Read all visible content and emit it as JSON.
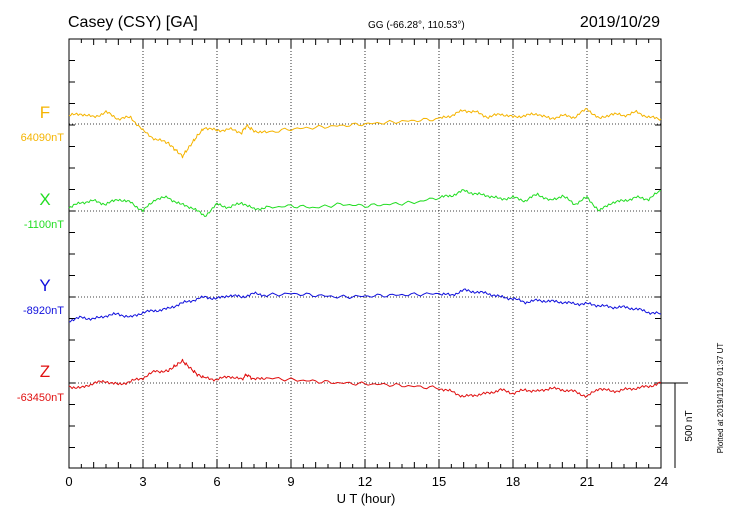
{
  "chart_data": {
    "type": "line",
    "title": "Casey (CSY)  [GA]",
    "subtitle": "GG (-66.28°, 110.53°)",
    "date": "2019/10/29",
    "xlabel": "U T (hour)",
    "xlim": [
      0,
      24
    ],
    "x_ticks": [
      "0",
      "3",
      "6",
      "9",
      "12",
      "15",
      "18",
      "21",
      "24"
    ],
    "grid": true,
    "scale_bar": {
      "label": "500 nT",
      "value": 500
    },
    "footer_note": "Plotted at 2019/11/29 01:37 UT",
    "series": [
      {
        "name": "F",
        "baseline_label": "64090nT",
        "baseline": 64090,
        "color": "#f5b400",
        "x": [
          0,
          0.5,
          1,
          1.5,
          2,
          2.5,
          3,
          3.5,
          4,
          4.3,
          4.6,
          4.9,
          5.2,
          5.5,
          6,
          6.5,
          7,
          7.2,
          7.5,
          8,
          9,
          10,
          11,
          12,
          13,
          14,
          15,
          15.5,
          16,
          16.5,
          17,
          17.5,
          18,
          18.5,
          19,
          19.5,
          20,
          20.5,
          21,
          21.5,
          22,
          22.5,
          23,
          23.5,
          24
        ],
        "values": [
          64140,
          64150,
          64130,
          64160,
          64120,
          64130,
          64050,
          64000,
          63980,
          63940,
          63900,
          63960,
          64020,
          64070,
          64050,
          64060,
          64040,
          64080,
          64050,
          64040,
          64060,
          64070,
          64080,
          64090,
          64100,
          64110,
          64120,
          64140,
          64170,
          64160,
          64130,
          64150,
          64130,
          64140,
          64150,
          64120,
          64140,
          64130,
          64180,
          64120,
          64150,
          64140,
          64160,
          64130,
          64120
        ]
      },
      {
        "name": "X",
        "baseline_label": "-1100nT",
        "baseline": -1100,
        "color": "#22dd22",
        "x": [
          0,
          0.5,
          1,
          1.5,
          2,
          2.5,
          3,
          3.5,
          4,
          4.5,
          5,
          5.5,
          6,
          6.5,
          7,
          7.5,
          8,
          9,
          10,
          11,
          12,
          13,
          14,
          15,
          15.5,
          16,
          16.5,
          17,
          17.5,
          18,
          18.5,
          19,
          19.5,
          20,
          20.5,
          21,
          21.5,
          22,
          22.5,
          23,
          23.5,
          24
        ],
        "values": [
          -1080,
          -1050,
          -1040,
          -1060,
          -1030,
          -1050,
          -1100,
          -1030,
          -1020,
          -1060,
          -1080,
          -1130,
          -1060,
          -1080,
          -1050,
          -1090,
          -1080,
          -1070,
          -1080,
          -1060,
          -1070,
          -1060,
          -1050,
          -1020,
          -1010,
          -980,
          -1000,
          -1010,
          -1030,
          -1020,
          -1040,
          -1000,
          -1040,
          -1010,
          -1060,
          -1020,
          -1100,
          -1050,
          -1040,
          -1020,
          -1030,
          -980
        ]
      },
      {
        "name": "Y",
        "baseline_label": "-8920nT",
        "baseline": -8920,
        "color": "#1010dd",
        "x": [
          0,
          0.5,
          1,
          1.5,
          2,
          2.5,
          3,
          3.5,
          4,
          4.5,
          5,
          5.5,
          6,
          6.5,
          7,
          7.5,
          8,
          9,
          10,
          11,
          12,
          13,
          14,
          15,
          15.5,
          16,
          16.5,
          17,
          17.5,
          18,
          18.5,
          19,
          19.5,
          20,
          20.5,
          21,
          21.5,
          22,
          22.5,
          23,
          23.5,
          24
        ],
        "values": [
          -9060,
          -9040,
          -9050,
          -9030,
          -9020,
          -9040,
          -9010,
          -9000,
          -8990,
          -8960,
          -8940,
          -8920,
          -8930,
          -8910,
          -8920,
          -8900,
          -8910,
          -8900,
          -8910,
          -8920,
          -8915,
          -8910,
          -8905,
          -8900,
          -8910,
          -8880,
          -8890,
          -8900,
          -8920,
          -8930,
          -8950,
          -8940,
          -8945,
          -8950,
          -8960,
          -8960,
          -8970,
          -8980,
          -8980,
          -8990,
          -9010,
          -9020
        ]
      },
      {
        "name": "Z",
        "baseline_label": "-63450nT",
        "baseline": -63450,
        "color": "#e01010",
        "x": [
          0,
          0.5,
          1,
          1.5,
          2,
          2.5,
          3,
          3.5,
          4,
          4.3,
          4.6,
          4.9,
          5.2,
          5.5,
          6,
          6.5,
          7,
          7.2,
          7.5,
          8,
          9,
          10,
          11,
          12,
          13,
          14,
          15,
          15.5,
          16,
          16.5,
          17,
          17.5,
          18,
          18.5,
          19,
          19.5,
          20,
          20.5,
          21,
          21.5,
          22,
          22.5,
          23,
          23.5,
          24
        ],
        "values": [
          -63470,
          -63480,
          -63450,
          -63440,
          -63460,
          -63440,
          -63420,
          -63380,
          -63380,
          -63350,
          -63320,
          -63360,
          -63400,
          -63420,
          -63430,
          -63410,
          -63430,
          -63400,
          -63430,
          -63420,
          -63430,
          -63440,
          -63450,
          -63455,
          -63460,
          -63470,
          -63480,
          -63500,
          -63530,
          -63520,
          -63510,
          -63490,
          -63510,
          -63490,
          -63500,
          -63480,
          -63490,
          -63500,
          -63530,
          -63480,
          -63500,
          -63490,
          -63480,
          -63470,
          -63450
        ]
      }
    ]
  }
}
